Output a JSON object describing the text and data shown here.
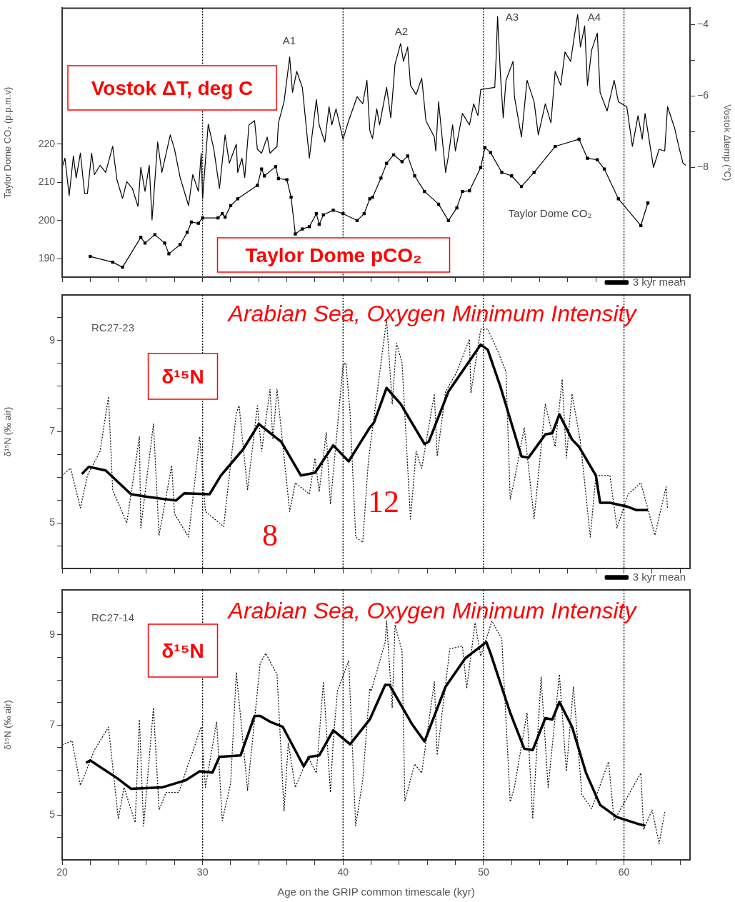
{
  "chart_data": [
    {
      "type": "line",
      "ylabel": "Taylor Dome CO₂ (p.p.m.v)",
      "y2label": "Vostok Δtemp (°C)",
      "xlim": [
        20,
        64.7
      ],
      "xticks": [
        20,
        {
          "value": 22,
          "label": null
        },
        {
          "value": 24,
          "label": null
        },
        {
          "value": 26,
          "label": null
        },
        {
          "value": 28,
          "label": null
        },
        30,
        {
          "value": 32,
          "label": null
        },
        {
          "value": 34,
          "label": null
        },
        {
          "value": 36,
          "label": null
        },
        {
          "value": 38,
          "label": null
        },
        40,
        {
          "value": 42,
          "label": null
        },
        {
          "value": 44,
          "label": null
        },
        {
          "value": 46,
          "label": null
        },
        {
          "value": 48,
          "label": null
        },
        50,
        {
          "value": 52,
          "label": null
        },
        {
          "value": 54,
          "label": null
        },
        {
          "value": 56,
          "label": null
        },
        {
          "value": 58,
          "label": null
        },
        60,
        {
          "value": 62,
          "label": null
        },
        {
          "value": 64,
          "label": null
        }
      ],
      "ylim": [
        185.2,
        255.6
      ],
      "yticks": [
        190,
        200,
        210,
        220
      ],
      "y2lim": [
        -11.07,
        -3.54
      ],
      "y2ticks": [
        -4,
        {
          "value": -5,
          "label": null
        },
        -6,
        {
          "value": -7,
          "label": null
        },
        -8
      ],
      "tick_labels": "y",
      "series": [
        {
          "color": "#000000",
          "axis": "y",
          "marker": "square",
          "x": [
            22.0,
            23.6,
            24.3,
            25.6,
            25.9,
            26.6,
            27.3,
            27.6,
            28.4,
            28.9,
            29.2,
            29.7,
            30.0,
            31.1,
            31.4,
            31.6,
            32.0,
            32.5,
            33.9,
            34.2,
            34.4,
            35.2,
            35.4,
            36.0,
            36.3,
            36.6,
            37.1,
            37.6,
            38.1,
            38.3,
            38.6,
            39.3,
            40.0,
            41.0,
            41.5,
            41.9,
            42.1,
            42.7,
            43.1,
            43.6,
            44.2,
            44.6,
            45.1,
            45.8,
            46.8,
            47.5,
            48.1,
            48.5,
            49.0,
            49.8,
            50.1,
            50.5,
            51.3,
            52.0,
            52.7,
            53.6,
            55.1,
            56.8,
            57.4,
            58.1,
            58.6,
            59.6,
            61.2,
            61.7
          ],
          "values": [
            190.6,
            189.1,
            187.8,
            195.6,
            194.1,
            196.3,
            194.1,
            191.3,
            193.7,
            196.9,
            199.6,
            199.3,
            200.7,
            200.7,
            201.8,
            200.9,
            203.9,
            205.7,
            209.2,
            213.5,
            211.7,
            214.1,
            211.0,
            210.7,
            206.1,
            196.5,
            197.8,
            198.4,
            201.8,
            199.0,
            201.5,
            202.7,
            201.8,
            200.0,
            201.8,
            205.7,
            206.1,
            211.1,
            215.0,
            217.2,
            215.4,
            216.9,
            211.7,
            207.6,
            204.3,
            200.0,
            203.3,
            207.6,
            207.8,
            213.9,
            219.1,
            217.8,
            212.6,
            211.7,
            208.9,
            212.6,
            219.4,
            221.3,
            216.3,
            215.9,
            213.5,
            205.7,
            198.7,
            204.6
          ]
        },
        {
          "color": "#000000",
          "axis": "y2",
          "marker": "none",
          "x": [
            20.0,
            20.2,
            20.5,
            20.8,
            21.0,
            21.3,
            21.6,
            21.8,
            22.1,
            22.3,
            22.7,
            23.1,
            23.6,
            23.9,
            24.3,
            24.6,
            25.0,
            25.4,
            25.6,
            25.9,
            26.2,
            26.4,
            26.8,
            27.1,
            27.7,
            28.0,
            28.4,
            29.0,
            29.3,
            29.7,
            29.9,
            30.0,
            30.4,
            30.8,
            31.2,
            31.6,
            31.9,
            32.4,
            32.5,
            32.8,
            33.0,
            33.3,
            33.7,
            33.9,
            34.2,
            34.6,
            34.8,
            35.3,
            35.4,
            35.8,
            36.2,
            36.4,
            36.7,
            37.1,
            37.6,
            38.1,
            38.3,
            38.7,
            39.0,
            39.2,
            39.5,
            40.0,
            40.4,
            41.0,
            41.4,
            41.7,
            41.9,
            42.0,
            42.1,
            42.4,
            42.6,
            43.1,
            43.4,
            43.7,
            44.1,
            44.3,
            44.6,
            44.8,
            45.2,
            45.6,
            45.9,
            46.5,
            46.6,
            46.8,
            47.3,
            47.5,
            47.8,
            48.0,
            48.5,
            49.0,
            49.3,
            49.6,
            49.8,
            50.8,
            50.9,
            51.0,
            51.2,
            51.4,
            51.6,
            52.1,
            52.2,
            52.7,
            53.1,
            53.6,
            53.9,
            54.4,
            54.8,
            55.1,
            55.5,
            55.8,
            56.2,
            56.7,
            56.9,
            57.2,
            57.4,
            57.7,
            58.1,
            58.3,
            58.8,
            59.3,
            59.6,
            60.2,
            60.6,
            61.0,
            61.3,
            61.5,
            62.1,
            62.5,
            62.9,
            63.1,
            63.6,
            63.9,
            64.2,
            64.4
          ],
          "values": [
            -8.0,
            -7.74,
            -8.79,
            -7.68,
            -8.3,
            -7.6,
            -8.73,
            -8.73,
            -7.6,
            -8.2,
            -7.94,
            -8.14,
            -7.41,
            -8.34,
            -8.87,
            -8.4,
            -8.59,
            -9.09,
            -8.0,
            -8.67,
            -7.94,
            -9.47,
            -7.29,
            -8.14,
            -7.09,
            -7.49,
            -8.28,
            -9.07,
            -8.2,
            -8.67,
            -7.6,
            -8.87,
            -6.79,
            -7.49,
            -8.59,
            -7.09,
            -7.88,
            -7.35,
            -8.14,
            -7.74,
            -8.28,
            -6.81,
            -6.69,
            -7.49,
            -7.6,
            -7.15,
            -7.6,
            -7.41,
            -6.75,
            -6.16,
            -4.91,
            -5.9,
            -5.31,
            -5.76,
            -7.74,
            -6.1,
            -6.81,
            -7.29,
            -6.3,
            -6.81,
            -6.36,
            -7.21,
            -6.69,
            -6.02,
            -6.22,
            -5.56,
            -6.95,
            -7.09,
            -7.19,
            -6.36,
            -6.81,
            -5.76,
            -6.61,
            -5.11,
            -4.53,
            -5.03,
            -4.63,
            -5.7,
            -5.96,
            -5.5,
            -6.69,
            -7.15,
            -7.54,
            -6.16,
            -8.14,
            -7.68,
            -6.81,
            -7.54,
            -6.49,
            -6.81,
            -6.22,
            -6.55,
            -5.82,
            -5.76,
            -4.91,
            -3.78,
            -5.37,
            -6.61,
            -5.56,
            -5.03,
            -6.02,
            -7.15,
            -5.56,
            -6.16,
            -7.09,
            -6.22,
            -6.75,
            -5.31,
            -5.7,
            -4.77,
            -5.03,
            -3.72,
            -4.63,
            -4.04,
            -5.7,
            -4.71,
            -4.24,
            -5.9,
            -6.42,
            -5.56,
            -6.16,
            -6.3,
            -7.41,
            -6.55,
            -7.21,
            -6.49,
            -8.0,
            -7.49,
            -7.54,
            -6.3,
            -6.89,
            -7.41,
            -7.88,
            -7.94
          ]
        }
      ],
      "ref_lines": [
        {
          "axis": "x",
          "value": 30,
          "line_style": "dotted"
        },
        {
          "axis": "x",
          "value": 40,
          "line_style": "dotted"
        },
        {
          "axis": "x",
          "value": 50,
          "line_style": "dotted"
        },
        {
          "axis": "x",
          "value": 60,
          "line_style": "dotted"
        }
      ],
      "annotations": [
        "Vostok ΔT, deg C",
        "Taylor Dome pCO₂",
        "A1",
        "A2",
        "A3",
        "A4",
        "Taylor Dome CO₂"
      ]
    },
    {
      "type": "line",
      "ylabel": "δ¹⁵N (‰ air)",
      "legend": "top right",
      "xlim": [
        20,
        64.7
      ],
      "xticks": [
        20,
        {
          "value": 22,
          "label": null
        },
        {
          "value": 24,
          "label": null
        },
        {
          "value": 26,
          "label": null
        },
        {
          "value": 28,
          "label": null
        },
        30,
        {
          "value": 32,
          "label": null
        },
        {
          "value": 34,
          "label": null
        },
        {
          "value": 36,
          "label": null
        },
        {
          "value": 38,
          "label": null
        },
        40,
        {
          "value": 42,
          "label": null
        },
        {
          "value": 44,
          "label": null
        },
        {
          "value": 46,
          "label": null
        },
        {
          "value": 48,
          "label": null
        },
        50,
        {
          "value": 52,
          "label": null
        },
        {
          "value": 54,
          "label": null
        },
        {
          "value": 56,
          "label": null
        },
        {
          "value": 58,
          "label": null
        },
        60,
        {
          "value": 62,
          "label": null
        },
        {
          "value": 64,
          "label": null
        }
      ],
      "ylim": [
        4,
        10
      ],
      "yticks": [
        {
          "value": 4.5,
          "label": null
        },
        5,
        {
          "value": 5.5,
          "label": null
        },
        {
          "value": 6,
          "label": null
        },
        {
          "value": 6.5,
          "label": null
        },
        7,
        {
          "value": 7.5,
          "label": null
        },
        {
          "value": 8,
          "label": null
        },
        {
          "value": 8.5,
          "label": null
        },
        9,
        {
          "value": 9.5,
          "label": null
        }
      ],
      "tick_labels": "y",
      "series": [
        {
          "color": "#000000",
          "line_style": "dotted",
          "x": [
            20.0,
            20.6,
            21.3,
            21.8,
            22.7,
            23.3,
            23.6,
            24.6,
            25.1,
            25.5,
            25.6,
            26.5,
            26.9,
            27.8,
            28.0,
            29.0,
            29.8,
            30.2,
            31.5,
            32.4,
            32.6,
            33.2,
            33.9,
            34.2,
            34.8,
            35.0,
            35.3,
            36.2,
            36.6,
            37.6,
            38.0,
            38.3,
            38.8,
            39.1,
            40.0,
            40.2,
            40.5,
            40.9,
            41.4,
            41.8,
            42.0,
            42.7,
            43.1,
            43.5,
            43.8,
            44.2,
            44.8,
            45.2,
            45.6,
            46.5,
            46.7,
            47.3,
            48.1,
            49.0,
            49.1,
            49.8,
            50.3,
            51.0,
            51.6,
            51.9,
            52.2,
            52.9,
            53.6,
            54.4,
            55.1,
            55.6,
            55.9,
            56.3,
            56.9,
            57.6,
            58.0,
            59.0,
            59.5,
            60.3,
            61.2,
            62.2,
            63.0,
            63.1
          ],
          "values": [
            6.04,
            6.2,
            5.33,
            6.04,
            6.57,
            7.77,
            5.72,
            5.0,
            6.04,
            6.89,
            4.89,
            7.17,
            4.73,
            6.26,
            5.2,
            4.69,
            6.89,
            5.25,
            4.92,
            7.41,
            7.57,
            5.72,
            7.57,
            6.57,
            7.93,
            6.83,
            7.93,
            5.25,
            5.88,
            5.63,
            6.42,
            5.68,
            6.98,
            5.41,
            8.46,
            8.51,
            7.41,
            4.69,
            4.57,
            6.35,
            6.83,
            8.51,
            9.46,
            7.61,
            8.94,
            8.51,
            5.08,
            6.57,
            6.2,
            7.83,
            6.46,
            7.88,
            8.31,
            9.03,
            7.85,
            9.25,
            9.25,
            8.78,
            8.31,
            5.52,
            5.94,
            7.09,
            5.09,
            7.61,
            6.67,
            8.15,
            6.42,
            7.83,
            6.78,
            4.69,
            6.04,
            6.04,
            4.89,
            5.63,
            5.88,
            4.73,
            5.79,
            5.31
          ]
        },
        {
          "name": "3 kyr mean",
          "color": "#000000",
          "line_style": "solid",
          "x": [
            21.4,
            21.9,
            23.1,
            24.9,
            26.1,
            28.1,
            28.7,
            30.5,
            31.3,
            32.9,
            34.0,
            35.6,
            37.0,
            38.0,
            39.3,
            40.4,
            41.9,
            42.2,
            43.1,
            44.1,
            45.8,
            46.1,
            47.5,
            49.8,
            50.3,
            51.2,
            52.7,
            53.2,
            54.4,
            54.9,
            55.4,
            56.3,
            56.8,
            58.0,
            58.3,
            59.0,
            60.2,
            60.9,
            61.7
          ],
          "values": [
            6.07,
            6.23,
            6.15,
            5.63,
            5.57,
            5.49,
            5.65,
            5.63,
            6.04,
            6.62,
            7.17,
            6.78,
            6.04,
            6.1,
            6.7,
            6.35,
            7.09,
            7.2,
            7.96,
            7.61,
            6.73,
            6.78,
            7.88,
            8.91,
            8.8,
            7.99,
            6.46,
            6.43,
            6.94,
            6.97,
            7.38,
            6.83,
            6.67,
            6.04,
            5.44,
            5.44,
            5.36,
            5.28,
            5.28
          ]
        }
      ],
      "ref_lines": [
        {
          "axis": "x",
          "value": 30,
          "line_style": "dotted"
        },
        {
          "axis": "x",
          "value": 40,
          "line_style": "dotted"
        },
        {
          "axis": "x",
          "value": 50,
          "line_style": "dotted"
        },
        {
          "axis": "x",
          "value": 60,
          "line_style": "dotted"
        }
      ],
      "annotations": [
        "RC27-23",
        "Arabian Sea, Oxygen Minimum Intensity",
        "δ¹⁵N",
        "8",
        "12"
      ]
    },
    {
      "type": "line",
      "xlabel": "Age on the GRIP common timescale (kyr)",
      "ylabel": "δ¹⁵N (‰ air)",
      "legend": "top right",
      "xlim": [
        20,
        64.7
      ],
      "xticks": [
        20,
        {
          "value": 22,
          "label": null
        },
        {
          "value": 24,
          "label": null
        },
        {
          "value": 26,
          "label": null
        },
        {
          "value": 28,
          "label": null
        },
        30,
        {
          "value": 32,
          "label": null
        },
        {
          "value": 34,
          "label": null
        },
        {
          "value": 36,
          "label": null
        },
        {
          "value": 38,
          "label": null
        },
        40,
        {
          "value": 42,
          "label": null
        },
        {
          "value": 44,
          "label": null
        },
        {
          "value": 46,
          "label": null
        },
        {
          "value": 48,
          "label": null
        },
        50,
        {
          "value": 52,
          "label": null
        },
        {
          "value": 54,
          "label": null
        },
        {
          "value": 56,
          "label": null
        },
        {
          "value": 58,
          "label": null
        },
        60,
        {
          "value": 62,
          "label": null
        },
        {
          "value": 64,
          "label": null
        }
      ],
      "ylim": [
        4,
        10
      ],
      "yticks": [
        {
          "value": 4.5,
          "label": null
        },
        5,
        {
          "value": 5.5,
          "label": null
        },
        {
          "value": 6,
          "label": null
        },
        {
          "value": 6.5,
          "label": null
        },
        7,
        {
          "value": 7.5,
          "label": null
        },
        {
          "value": 8,
          "label": null
        },
        {
          "value": 8.5,
          "label": null
        },
        9,
        {
          "value": 9.5,
          "label": null
        }
      ],
      "series": [
        {
          "color": "#000000",
          "line_style": "dotted",
          "x": [
            20.0,
            20.7,
            21.3,
            22.3,
            23.3,
            24.0,
            24.4,
            25.2,
            25.5,
            25.8,
            26.5,
            26.9,
            27.4,
            28.3,
            29.9,
            30.2,
            31.0,
            31.4,
            32.0,
            32.4,
            33.2,
            34.1,
            34.5,
            35.3,
            35.8,
            36.1,
            36.6,
            37.5,
            38.1,
            38.6,
            39.1,
            39.3,
            39.6,
            40.4,
            40.9,
            41.4,
            41.9,
            42.0,
            43.0,
            43.1,
            43.5,
            43.7,
            44.2,
            44.4,
            45.1,
            45.6,
            46.5,
            46.7,
            47.6,
            48.5,
            48.8,
            49.4,
            49.8,
            50.6,
            51.3,
            51.9,
            52.2,
            53.1,
            53.5,
            54.1,
            54.6,
            55.4,
            55.9,
            56.4,
            57.0,
            57.7,
            58.9,
            59.3,
            61.2,
            61.4,
            62.0,
            62.5,
            62.9
          ],
          "values": [
            6.55,
            6.65,
            5.66,
            6.44,
            6.95,
            4.91,
            5.61,
            4.83,
            7.12,
            4.75,
            7.38,
            5.11,
            5.5,
            5.5,
            6.96,
            5.61,
            7.07,
            4.87,
            5.71,
            8.17,
            5.55,
            8.37,
            8.59,
            8.12,
            5.08,
            6.6,
            5.61,
            6.29,
            5.93,
            7.96,
            5.5,
            6.65,
            7.75,
            8.43,
            4.76,
            5.77,
            7.81,
            7.75,
            8.84,
            9.31,
            7.38,
            9.22,
            8.64,
            5.31,
            6.13,
            5.93,
            7.96,
            6.33,
            8.69,
            8.75,
            7.81,
            9.27,
            8.53,
            9.31,
            8.91,
            5.29,
            5.61,
            7.27,
            4.91,
            8.06,
            5.61,
            8.12,
            5.97,
            7.85,
            5.45,
            5.14,
            6.18,
            4.87,
            5.93,
            4.67,
            5.11,
            4.36,
            5.06
          ]
        },
        {
          "name": "3 kyr mean",
          "color": "#000000",
          "line_style": "solid",
          "x": [
            21.7,
            22.0,
            23.9,
            24.9,
            27.1,
            28.8,
            29.8,
            30.7,
            31.2,
            32.7,
            33.7,
            34.1,
            34.8,
            35.7,
            37.2,
            37.6,
            38.3,
            39.3,
            40.5,
            41.9,
            43.0,
            43.3,
            44.9,
            45.8,
            47.3,
            48.7,
            50.2,
            50.5,
            51.9,
            52.9,
            53.5,
            54.4,
            54.9,
            55.4,
            56.3,
            57.3,
            58.3,
            59.5,
            61.0,
            61.5
          ],
          "values": [
            6.16,
            6.21,
            5.82,
            5.58,
            5.61,
            5.77,
            5.97,
            5.94,
            6.29,
            6.32,
            7.2,
            7.2,
            7.07,
            6.96,
            6.08,
            6.29,
            6.32,
            6.88,
            6.57,
            7.12,
            7.89,
            7.89,
            7.02,
            6.63,
            7.85,
            8.48,
            8.84,
            8.59,
            7.27,
            6.47,
            6.44,
            7.15,
            7.12,
            7.51,
            6.96,
            5.93,
            5.22,
            4.95,
            4.8,
            4.76
          ]
        }
      ],
      "ref_lines": [
        {
          "axis": "x",
          "value": 30,
          "line_style": "dotted"
        },
        {
          "axis": "x",
          "value": 40,
          "line_style": "dotted"
        },
        {
          "axis": "x",
          "value": 50,
          "line_style": "dotted"
        },
        {
          "axis": "x",
          "value": 60,
          "line_style": "dotted"
        }
      ],
      "annotations": [
        "RC27-14",
        "Arabian Sea, Oxygen Minimum Intensity",
        "δ¹⁵N"
      ]
    }
  ]
}
